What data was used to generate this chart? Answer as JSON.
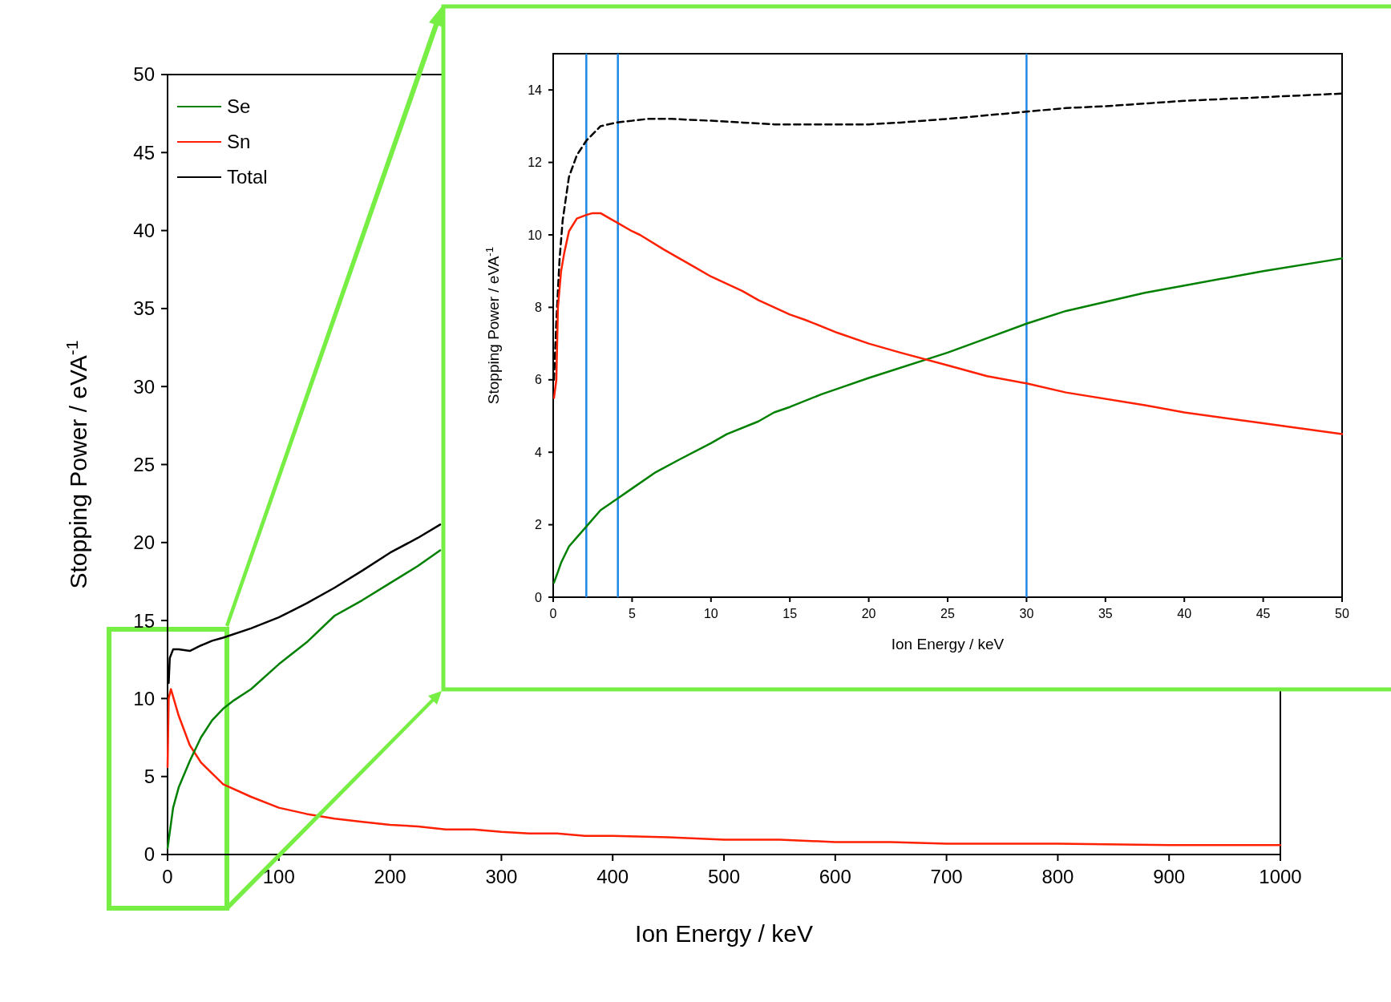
{
  "chart_data": [
    {
      "type": "line",
      "xlabel": "Ion Energy / keV",
      "ylabel": "Stopping Power / eVA$^{-1}$",
      "xlim": [
        0,
        1000
      ],
      "ylim": [
        0,
        50
      ],
      "xticks": [
        0,
        100,
        200,
        300,
        400,
        500,
        600,
        700,
        800,
        900,
        1000
      ],
      "yticks": [
        0,
        5,
        10,
        15,
        20,
        25,
        30,
        35,
        40,
        45,
        50
      ],
      "legend": "top left",
      "series": [
        {
          "name": "Se",
          "color": "#008000",
          "x": [
            0,
            5,
            10,
            20,
            30,
            40,
            50,
            60,
            75,
            100,
            125,
            150,
            175,
            200,
            225,
            245
          ],
          "values": [
            0.4,
            3,
            4.3,
            6,
            7.5,
            8.6,
            9.35,
            9.9,
            10.6,
            12.2,
            13.6,
            15.3,
            16.3,
            17.4,
            18.5,
            19.5
          ]
        },
        {
          "name": "Sn",
          "color": "#ff2000",
          "x": [
            0,
            1,
            3,
            10,
            20,
            30,
            50,
            75,
            100,
            125,
            150,
            175,
            200,
            225,
            250,
            275,
            300,
            325,
            350,
            375,
            400,
            450,
            500,
            550,
            600,
            650,
            700,
            800,
            900,
            1000
          ],
          "values": [
            5.6,
            10,
            10.6,
            8.9,
            7,
            5.9,
            4.5,
            3.7,
            3,
            2.6,
            2.3,
            2.1,
            1.9,
            1.8,
            1.6,
            1.6,
            1.45,
            1.35,
            1.35,
            1.2,
            1.2,
            1.1,
            0.95,
            0.95,
            0.8,
            0.8,
            0.7,
            0.7,
            0.6,
            0.6
          ]
        },
        {
          "name": "Total",
          "color": "#000000",
          "x": [
            1,
            2,
            5,
            10,
            20,
            30,
            40,
            50,
            75,
            100,
            125,
            150,
            175,
            200,
            225,
            245
          ],
          "values": [
            11,
            12.6,
            13.15,
            13.15,
            13.05,
            13.4,
            13.7,
            13.9,
            14.5,
            15.2,
            16.1,
            17.1,
            18.2,
            19.35,
            20.3,
            21.15
          ]
        }
      ]
    },
    {
      "type": "line",
      "xlabel": "Ion Energy / keV",
      "ylabel": "Stopping Power / eVA$^{-1}$",
      "xlim": [
        0,
        50
      ],
      "ylim": [
        0,
        15
      ],
      "xticks": [
        0,
        5,
        10,
        15,
        20,
        25,
        30,
        35,
        40,
        45,
        50
      ],
      "yticks": [
        0,
        2,
        4,
        6,
        8,
        10,
        12,
        14
      ],
      "ref_lines": [
        {
          "axis": "x",
          "value": 2.1,
          "color": "#1e88e5"
        },
        {
          "axis": "x",
          "value": 4.1,
          "color": "#1e88e5"
        },
        {
          "axis": "x",
          "value": 30,
          "color": "#1e88e5"
        }
      ],
      "series": [
        {
          "color": "#ff2000",
          "x": [
            0.05,
            0.2,
            0.3,
            0.5,
            0.7,
            1,
            1.5,
            2.1,
            2.5,
            3,
            4,
            5,
            5.5,
            7,
            8,
            9,
            10,
            12,
            13,
            14,
            15,
            16,
            18,
            20,
            22,
            25,
            27.5,
            30,
            32.5,
            37.5,
            40,
            45,
            50
          ],
          "values": [
            5.5,
            6,
            8,
            9,
            9.5,
            10.1,
            10.45,
            10.55,
            10.6,
            10.6,
            10.35,
            10.1,
            10,
            9.6,
            9.35,
            9.1,
            8.85,
            8.45,
            8.2,
            8,
            7.8,
            7.65,
            7.3,
            7,
            6.75,
            6.4,
            6.1,
            5.9,
            5.65,
            5.3,
            5.1,
            4.8,
            4.5
          ]
        },
        {
          "color": "#008000",
          "x": [
            0.05,
            0.3,
            0.5,
            1,
            1.5,
            2.1,
            3,
            4,
            5,
            6.5,
            8,
            10,
            11,
            13,
            14,
            15,
            17,
            18,
            20,
            25,
            27.5,
            30,
            32.5,
            37.5,
            40,
            45,
            50
          ],
          "values": [
            0.4,
            0.7,
            0.95,
            1.4,
            1.65,
            1.95,
            2.4,
            2.7,
            3,
            3.45,
            3.8,
            4.25,
            4.5,
            4.85,
            5.1,
            5.25,
            5.6,
            5.75,
            6.05,
            6.75,
            7.15,
            7.55,
            7.9,
            8.4,
            8.6,
            9,
            9.35
          ]
        },
        {
          "color": "#000000",
          "line_style": "dashed",
          "x": [
            0.05,
            0.2,
            0.4,
            0.6,
            1,
            1.5,
            2.1,
            3,
            4,
            5,
            6,
            7.5,
            10,
            12,
            14,
            20,
            22,
            25,
            27.5,
            30,
            32.5,
            35,
            40,
            45,
            50
          ],
          "values": [
            6,
            7.6,
            9.3,
            10.4,
            11.6,
            12.2,
            12.6,
            13,
            13.1,
            13.15,
            13.2,
            13.2,
            13.15,
            13.1,
            13.05,
            13.05,
            13.1,
            13.2,
            13.3,
            13.4,
            13.5,
            13.55,
            13.7,
            13.8,
            13.9
          ]
        }
      ]
    }
  ]
}
